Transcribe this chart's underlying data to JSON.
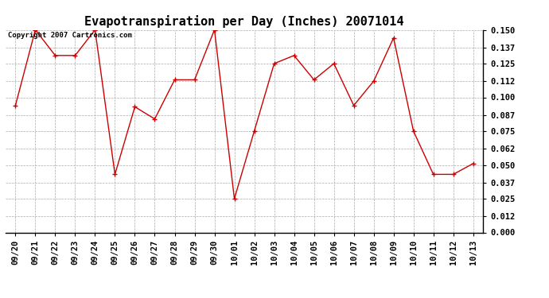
{
  "title": "Evapotranspiration per Day (Inches) 20071014",
  "copyright_text": "Copyright 2007 Cartronics.com",
  "dates": [
    "09/20",
    "09/21",
    "09/22",
    "09/23",
    "09/24",
    "09/25",
    "09/26",
    "09/27",
    "09/28",
    "09/29",
    "09/30",
    "10/01",
    "10/02",
    "10/03",
    "10/04",
    "10/05",
    "10/06",
    "10/07",
    "10/08",
    "10/09",
    "10/10",
    "10/11",
    "10/12",
    "10/13"
  ],
  "values": [
    0.094,
    0.15,
    0.131,
    0.131,
    0.15,
    0.043,
    0.093,
    0.084,
    0.113,
    0.113,
    0.15,
    0.025,
    0.075,
    0.125,
    0.131,
    0.113,
    0.125,
    0.094,
    0.112,
    0.144,
    0.075,
    0.043,
    0.043,
    0.051
  ],
  "line_color": "#cc0000",
  "marker": "+",
  "marker_size": 5,
  "ylim_min": 0.0,
  "ylim_max": 0.15,
  "yticks": [
    0.0,
    0.012,
    0.025,
    0.037,
    0.05,
    0.062,
    0.075,
    0.087,
    0.1,
    0.112,
    0.125,
    0.137,
    0.15
  ],
  "background_color": "#ffffff",
  "grid_color": "#aaaaaa",
  "title_fontsize": 11,
  "copyright_fontsize": 6.5,
  "tick_fontsize": 7.5,
  "line_width": 1.0
}
